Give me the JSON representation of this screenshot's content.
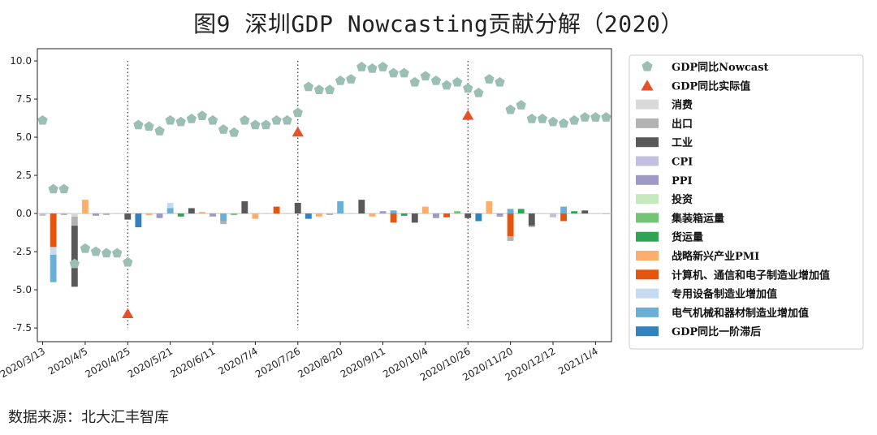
{
  "title": "图9   深圳GDP Nowcasting贡献分解（2020）",
  "source": "数据来源：北大汇丰智库",
  "colors": {
    "nowcast": "#9bbfb5",
    "actual": "#e8502a",
    "消费": "#d9d9d9",
    "出口": "#b3b3b3",
    "工业": "#595959",
    "CPI": "#c2bfe0",
    "PPI": "#9e9ac8",
    "投资": "#c7e9c0",
    "集装箱运量": "#74c476",
    "货运量": "#31a354",
    "战略新兴产业PMI": "#fdae6b",
    "计算机、通信和电子制造业增加值": "#e6550d",
    "专用设备制造业增加值": "#c6dbef",
    "电气机械和器材制造业增加值": "#6baed6",
    "GDP同比一阶滞后": "#3182bd"
  },
  "chart_data": {
    "type": "bar",
    "ylim": [
      -8.4,
      10.8
    ],
    "yticks": [
      -7.5,
      -5.0,
      -2.5,
      0.0,
      2.5,
      5.0,
      7.5,
      10.0
    ],
    "ytick_labels": [
      "-7.5",
      "-5.0",
      "-2.5",
      "0.0",
      "2.5",
      "5.0",
      "7.5",
      "10.0"
    ],
    "xlim": [
      -0.5,
      53.5
    ],
    "xtick_labels": [
      "2020/3/13",
      "2020/4/5",
      "2020/4/25",
      "2020/5/21",
      "2020/6/11",
      "2020/7/4",
      "2020/7/26",
      "2020/8/20",
      "2020/9/11",
      "2020/10/4",
      "2020/10/26",
      "2020/11/20",
      "2020/12/12",
      "2021/1/4"
    ],
    "xtick_positions": [
      0,
      4,
      8,
      12,
      16,
      20,
      24,
      28,
      32,
      36,
      40,
      44,
      48,
      52
    ],
    "quarter_lines": [
      8,
      24,
      40
    ],
    "legend": [
      "GDP同比Nowcast",
      "GDP同比实际值",
      "消费",
      "出口",
      "工业",
      "CPI",
      "PPI",
      "投资",
      "集装箱运量",
      "货运量",
      "战略新兴产业PMI",
      "计算机、通信和电子制造业增加值",
      "专用设备制造业增加值",
      "电气机械和器材制造业增加值",
      "GDP同比一阶滞后"
    ],
    "nowcast": [
      6.1,
      1.6,
      1.6,
      -3.3,
      -2.3,
      -2.5,
      -2.6,
      -2.6,
      -3.2,
      5.8,
      5.7,
      5.4,
      6.1,
      6.0,
      6.2,
      6.4,
      6.1,
      5.5,
      5.3,
      6.1,
      5.8,
      5.8,
      6.1,
      6.1,
      6.6,
      8.3,
      8.1,
      8.1,
      8.7,
      8.8,
      9.6,
      9.5,
      9.6,
      9.2,
      9.2,
      8.6,
      9.0,
      8.7,
      8.4,
      8.6,
      8.2,
      7.9,
      8.8,
      8.6,
      6.8,
      7.1,
      6.2,
      6.2,
      6.0,
      5.9,
      6.1,
      6.3,
      6.3,
      6.3
    ],
    "actual": [
      {
        "x": 8,
        "value": -6.6
      },
      {
        "x": 24,
        "value": 5.3
      },
      {
        "x": 40,
        "value": 6.4
      }
    ],
    "bars": [
      {
        "x": 0,
        "segments": [
          [
            "CPI",
            -0.15
          ]
        ]
      },
      {
        "x": 1,
        "segments": [
          [
            "计算机、通信和电子制造业增加值",
            -2.2
          ],
          [
            "专用设备制造业增加值",
            -0.5
          ],
          [
            "电气机械和器材制造业增加值",
            -1.8
          ]
        ]
      },
      {
        "x": 2,
        "segments": [
          [
            "出口",
            -0.1
          ]
        ]
      },
      {
        "x": 3,
        "segments": [
          [
            "消费",
            -0.2
          ],
          [
            "出口",
            -0.6
          ],
          [
            "工业",
            -4.0
          ]
        ]
      },
      {
        "x": 4,
        "segments": [
          [
            "战略新兴产业PMI",
            0.9
          ]
        ]
      },
      {
        "x": 5,
        "segments": [
          [
            "PPI",
            -0.15
          ]
        ]
      },
      {
        "x": 6,
        "segments": [
          [
            "出口",
            -0.1
          ]
        ]
      },
      {
        "x": 7,
        "segments": [
          [
            "消费",
            -0.05
          ]
        ]
      },
      {
        "x": 8,
        "segments": [
          [
            "工业",
            -0.4
          ]
        ]
      },
      {
        "x": 9,
        "segments": [
          [
            "GDP同比一阶滞后",
            -0.9
          ]
        ]
      },
      {
        "x": 10,
        "segments": [
          [
            "战略新兴产业PMI",
            -0.1
          ]
        ]
      },
      {
        "x": 11,
        "segments": [
          [
            "PPI",
            -0.3
          ]
        ]
      },
      {
        "x": 12,
        "segments": [
          [
            "电气机械和器材制造业增加值",
            0.35
          ],
          [
            "专用设备制造业增加值",
            0.35
          ]
        ]
      },
      {
        "x": 13,
        "segments": [
          [
            "货运量",
            -0.2
          ]
        ]
      },
      {
        "x": 14,
        "segments": [
          [
            "工业",
            0.35
          ]
        ]
      },
      {
        "x": 15,
        "segments": [
          [
            "战略新兴产业PMI",
            0.1
          ]
        ]
      },
      {
        "x": 16,
        "segments": [
          [
            "PPI",
            -0.2
          ]
        ]
      },
      {
        "x": 17,
        "segments": [
          [
            "电气机械和器材制造业增加值",
            -0.5
          ],
          [
            "出口",
            -0.2
          ]
        ]
      },
      {
        "x": 18,
        "segments": [
          [
            "集装箱运量",
            -0.1
          ]
        ]
      },
      {
        "x": 19,
        "segments": [
          [
            "工业",
            0.8
          ]
        ]
      },
      {
        "x": 20,
        "segments": [
          [
            "战略新兴产业PMI",
            -0.35
          ]
        ]
      },
      {
        "x": 21,
        "segments": [
          [
            "消费",
            -0.05
          ]
        ]
      },
      {
        "x": 22,
        "segments": [
          [
            "计算机、通信和电子制造业增加值",
            0.45
          ]
        ]
      },
      {
        "x": 23,
        "segments": [
          [
            "消费",
            -0.05
          ]
        ]
      },
      {
        "x": 24,
        "segments": [
          [
            "工业",
            0.7
          ]
        ]
      },
      {
        "x": 25,
        "segments": [
          [
            "GDP同比一阶滞后",
            -0.35
          ]
        ]
      },
      {
        "x": 26,
        "segments": [
          [
            "战略新兴产业PMI",
            -0.2
          ]
        ]
      },
      {
        "x": 27,
        "segments": [
          [
            "出口",
            -0.1
          ]
        ]
      },
      {
        "x": 28,
        "segments": [
          [
            "电气机械和器材制造业增加值",
            0.8
          ]
        ]
      },
      {
        "x": 29,
        "segments": [
          [
            "消费",
            -0.05
          ]
        ]
      },
      {
        "x": 30,
        "segments": [
          [
            "工业",
            0.9
          ]
        ]
      },
      {
        "x": 31,
        "segments": [
          [
            "战略新兴产业PMI",
            -0.2
          ]
        ]
      },
      {
        "x": 32,
        "segments": [
          [
            "PPI",
            0.15
          ]
        ]
      },
      {
        "x": 33,
        "segments": [
          [
            "电气机械和器材制造业增加值",
            0.2
          ],
          [
            "计算机、通信和电子制造业增加值",
            -0.6
          ]
        ]
      },
      {
        "x": 34,
        "segments": [
          [
            "货运量",
            -0.15
          ]
        ]
      },
      {
        "x": 35,
        "segments": [
          [
            "工业",
            -0.6
          ]
        ]
      },
      {
        "x": 36,
        "segments": [
          [
            "战略新兴产业PMI",
            0.45
          ]
        ]
      },
      {
        "x": 37,
        "segments": [
          [
            "PPI",
            -0.3
          ]
        ]
      },
      {
        "x": 38,
        "segments": [
          [
            "计算机、通信和电子制造业增加值",
            -0.25
          ]
        ]
      },
      {
        "x": 39,
        "segments": [
          [
            "集装箱运量",
            0.15
          ]
        ]
      },
      {
        "x": 40,
        "segments": [
          [
            "工业",
            -0.3
          ]
        ]
      },
      {
        "x": 41,
        "segments": [
          [
            "GDP同比一阶滞后",
            -0.5
          ]
        ]
      },
      {
        "x": 42,
        "segments": [
          [
            "战略新兴产业PMI",
            0.8
          ]
        ]
      },
      {
        "x": 43,
        "segments": [
          [
            "PPI",
            -0.2
          ]
        ]
      },
      {
        "x": 44,
        "segments": [
          [
            "电气机械和器材制造业增加值",
            0.3
          ],
          [
            "计算机、通信和电子制造业增加值",
            -1.5
          ],
          [
            "出口",
            -0.3
          ]
        ]
      },
      {
        "x": 45,
        "segments": [
          [
            "货运量",
            0.3
          ]
        ]
      },
      {
        "x": 46,
        "segments": [
          [
            "工业",
            -0.8
          ],
          [
            "出口",
            -0.1
          ]
        ]
      },
      {
        "x": 47,
        "segments": [
          [
            "消费",
            -0.05
          ]
        ]
      },
      {
        "x": 48,
        "segments": [
          [
            "CPI",
            -0.25
          ]
        ]
      },
      {
        "x": 49,
        "segments": [
          [
            "电气机械和器材制造业增加值",
            0.45
          ],
          [
            "计算机、通信和电子制造业增加值",
            -0.5
          ]
        ]
      },
      {
        "x": 50,
        "segments": [
          [
            "货运量",
            0.15
          ]
        ]
      },
      {
        "x": 51,
        "segments": [
          [
            "工业",
            0.2
          ]
        ]
      },
      {
        "x": 52,
        "segments": [
          [
            "消费",
            -0.05
          ]
        ]
      },
      {
        "x": 53,
        "segments": [
          [
            "CPI",
            -0.05
          ]
        ]
      }
    ]
  }
}
